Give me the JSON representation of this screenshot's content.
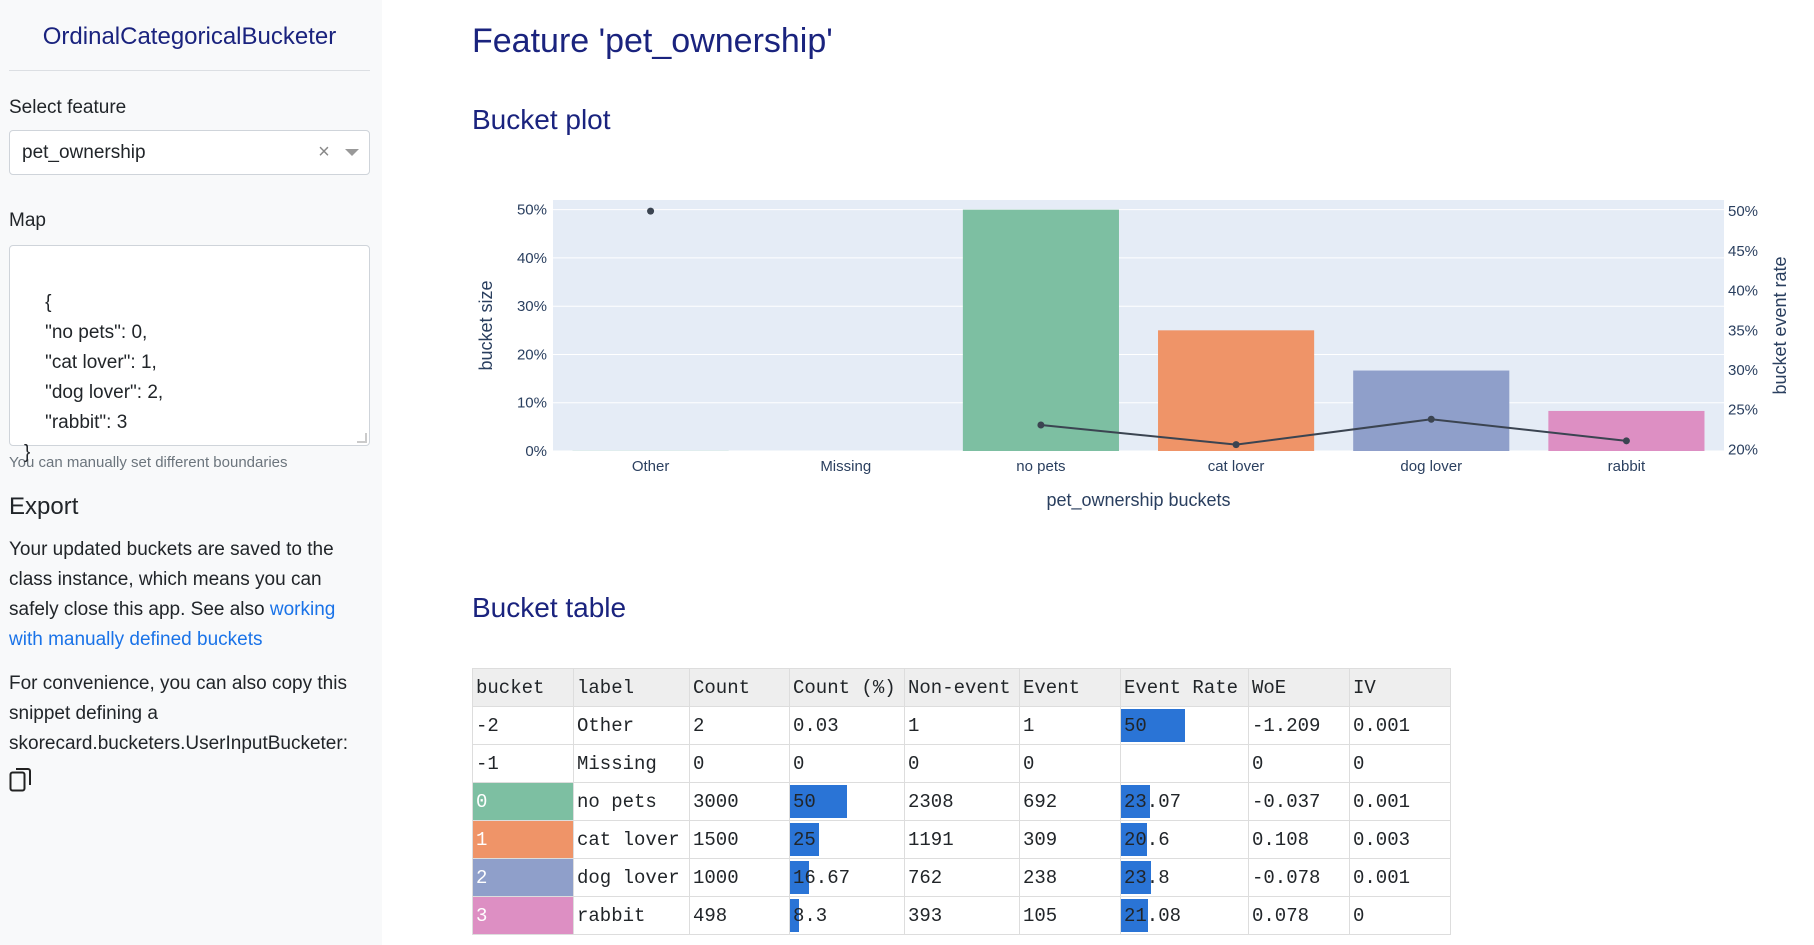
{
  "sidebar": {
    "title": "OrdinalCategoricalBucketer",
    "select_label": "Select feature",
    "select_value": "pet_ownership",
    "map_label": "Map",
    "map_text": "{\n    \"no pets\": 0,\n    \"cat lover\": 1,\n    \"dog lover\": 2,\n    \"rabbit\": 3\n}",
    "hint": "You can manually set different boundaries",
    "export_title": "Export",
    "export_text": "Your updated buckets are saved to the class instance, which means you can safely close this app. See also ",
    "export_link": "working with manually defined buckets",
    "snippet_text": "For convenience, you can also copy this snippet defining a skorecard.bucketers.UserInputBucketer:",
    "copy_icon": "copy-icon"
  },
  "main": {
    "title": "Feature 'pet_ownership'",
    "plot_title": "Bucket plot",
    "table_title": "Bucket table"
  },
  "chart_data": {
    "type": "bar",
    "categories": [
      "Other",
      "Missing",
      "no pets",
      "cat lover",
      "dog lover",
      "rabbit"
    ],
    "bar_values": [
      0.03,
      0,
      50,
      25,
      16.67,
      8.3
    ],
    "bar_colors": [
      "#7fc4a4",
      "#7fc4a4",
      "#7dbfa2",
      "#ef9468",
      "#8f9fca",
      "#dd8fc3"
    ],
    "line_values": [
      50,
      null,
      23.07,
      20.6,
      23.8,
      21.08
    ],
    "xlabel": "pet_ownership buckets",
    "ylabel": "bucket size",
    "y2label": "bucket event rate",
    "y_ticks": [
      "0%",
      "10%",
      "20%",
      "30%",
      "40%",
      "50%"
    ],
    "y_range": [
      0,
      52
    ],
    "y2_ticks": [
      "20%",
      "25%",
      "30%",
      "35%",
      "40%",
      "45%",
      "50%"
    ],
    "y2_range": [
      19.8,
      51.4
    ]
  },
  "table": {
    "headers": [
      "bucket",
      "label",
      "Count",
      "Count (%)",
      "Non-event",
      "Event",
      "Event Rate",
      "WoE",
      "IV"
    ],
    "rows": [
      {
        "bucket": "-2",
        "label": "Other",
        "count": "2",
        "count_pct": "0.03",
        "count_pct_val": 0.03,
        "nonevent": "1",
        "event": "1",
        "event_rate": "50",
        "event_rate_val": 50,
        "woe": "-1.209",
        "iv": "0.001",
        "color": ""
      },
      {
        "bucket": "-1",
        "label": "Missing",
        "count": "0",
        "count_pct": "0",
        "count_pct_val": 0,
        "nonevent": "0",
        "event": "0",
        "event_rate": "",
        "event_rate_val": 0,
        "woe": "0",
        "iv": "0",
        "color": ""
      },
      {
        "bucket": "0",
        "label": "no pets",
        "count": "3000",
        "count_pct": "50",
        "count_pct_val": 50,
        "nonevent": "2308",
        "event": "692",
        "event_rate": "23.07",
        "event_rate_val": 23.07,
        "woe": "-0.037",
        "iv": "0.001",
        "color": "#7dbfa2"
      },
      {
        "bucket": "1",
        "label": "cat lover",
        "count": "1500",
        "count_pct": "25",
        "count_pct_val": 25,
        "nonevent": "1191",
        "event": "309",
        "event_rate": "20.6",
        "event_rate_val": 20.6,
        "woe": "0.108",
        "iv": "0.003",
        "color": "#ef9468"
      },
      {
        "bucket": "2",
        "label": "dog lover",
        "count": "1000",
        "count_pct": "16.67",
        "count_pct_val": 16.67,
        "nonevent": "762",
        "event": "238",
        "event_rate": "23.8",
        "event_rate_val": 23.8,
        "woe": "-0.078",
        "iv": "0.001",
        "color": "#8f9fca"
      },
      {
        "bucket": "3",
        "label": "rabbit",
        "count": "498",
        "count_pct": "8.3",
        "count_pct_val": 8.3,
        "nonevent": "393",
        "event": "105",
        "event_rate": "21.08",
        "event_rate_val": 21.08,
        "woe": "0.078",
        "iv": "0",
        "color": "#dd8fc3"
      }
    ]
  }
}
